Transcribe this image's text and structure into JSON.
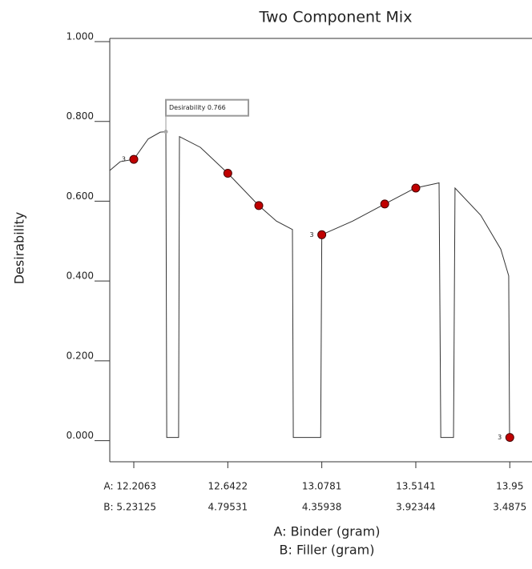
{
  "chart_data": {
    "type": "line",
    "title": "Two Component Mix",
    "x_label": "A: Binder (gram)",
    "x_label_2": "B: Filler (gram)",
    "y_label": "Desirability",
    "xlim": [
      12.0948,
      14.053
    ],
    "ylim": [
      -0.061,
      1.0
    ],
    "xticks": [
      {
        "value": 12.2063,
        "label": "A: 12.2063",
        "label_b": "B: 5.23125"
      },
      {
        "value": 12.6422,
        "label": "12.6422",
        "label_b": "4.79531"
      },
      {
        "value": 13.0781,
        "label": "13.0781",
        "label_b": "4.35938"
      },
      {
        "value": 13.5141,
        "label": "13.5141",
        "label_b": "3.92344"
      },
      {
        "value": 13.95,
        "label": "13.95",
        "label_b": "3.4875"
      }
    ],
    "yticks": [
      {
        "value": 0,
        "label": "0.000"
      },
      {
        "value": 0.2,
        "label": "0.200"
      },
      {
        "value": 0.4,
        "label": "0.400"
      },
      {
        "value": 0.6,
        "label": "0.600"
      },
      {
        "value": 0.8,
        "label": "0.800"
      },
      {
        "value": 1,
        "label": "1.000"
      }
    ],
    "curve": {
      "color": "#333333",
      "x": [
        12.095,
        12.143,
        12.2063,
        12.273,
        12.329,
        12.355,
        12.359,
        12.414,
        12.418,
        12.515,
        12.6422,
        12.786,
        12.868,
        12.942,
        12.946,
        13.073,
        13.0781,
        13.221,
        13.37,
        13.511,
        13.622,
        13.63,
        13.689,
        13.696,
        13.815,
        13.908,
        13.945,
        13.949
      ],
      "values": [
        0.669,
        0.691,
        0.697,
        0.748,
        0.765,
        0.766,
        0,
        0,
        0.754,
        0.727,
        0.662,
        0.581,
        0.542,
        0.521,
        0,
        0,
        0.508,
        0.542,
        0.585,
        0.625,
        0.638,
        0,
        0,
        0.625,
        0.557,
        0.472,
        0.405,
        0
      ]
    },
    "points": {
      "color": "#c00000",
      "x": [
        12.2063,
        12.6422,
        12.786,
        13.0781,
        13.37,
        13.5141,
        13.95
      ],
      "values": [
        0.697,
        0.662,
        0.581,
        0.508,
        0.585,
        0.625,
        0
      ],
      "point_labels": [
        "3",
        null,
        null,
        "3",
        null,
        null,
        "3"
      ]
    },
    "annotation": {
      "text": "Desirability 0.766",
      "x": 12.355,
      "y": 0.766
    }
  }
}
